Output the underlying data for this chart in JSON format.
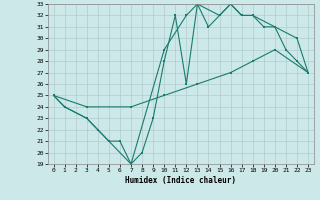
{
  "xlabel": "Humidex (Indice chaleur)",
  "bg_color": "#cce8e8",
  "grid_color": "#b8d8d8",
  "line_color": "#1a7a6e",
  "xlim": [
    -0.5,
    23.5
  ],
  "ylim": [
    19,
    33
  ],
  "xticks": [
    0,
    1,
    2,
    3,
    4,
    5,
    6,
    7,
    8,
    9,
    10,
    11,
    12,
    13,
    14,
    15,
    16,
    17,
    18,
    19,
    20,
    21,
    22,
    23
  ],
  "yticks": [
    19,
    20,
    21,
    22,
    23,
    24,
    25,
    26,
    27,
    28,
    29,
    30,
    31,
    32,
    33
  ],
  "line1_x": [
    0,
    1,
    3,
    4,
    5,
    6,
    7,
    8,
    9,
    10,
    11,
    12,
    13,
    14,
    15,
    16,
    17,
    18,
    19,
    20,
    21,
    22,
    23
  ],
  "line1_y": [
    25,
    24,
    23,
    22,
    21,
    21,
    19,
    20,
    23,
    28,
    32,
    26,
    33,
    31,
    32,
    33,
    32,
    32,
    31,
    31,
    29,
    28,
    27
  ],
  "line2_x": [
    0,
    1,
    3,
    7,
    10,
    12,
    13,
    15,
    16,
    17,
    18,
    20,
    22,
    23
  ],
  "line2_y": [
    25,
    24,
    23,
    19,
    29,
    32,
    33,
    32,
    33,
    32,
    32,
    31,
    30,
    27
  ],
  "line3_x": [
    0,
    3,
    7,
    10,
    13,
    16,
    18,
    20,
    23
  ],
  "line3_y": [
    25,
    24,
    24,
    25,
    26,
    27,
    28,
    29,
    27
  ]
}
